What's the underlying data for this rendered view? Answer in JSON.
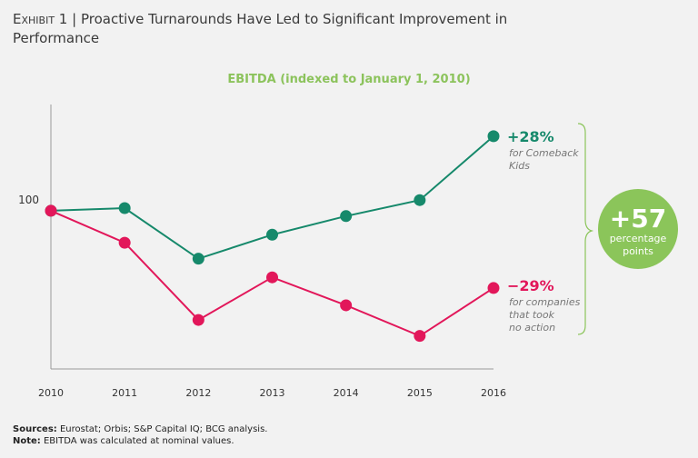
{
  "header": {
    "exhibit_label": "Exhibit 1",
    "separator": " | ",
    "title": "Proactive Turnarounds Have Led to Significant Improvement in Performance"
  },
  "chart_data": {
    "type": "line",
    "title": "EBITDA (indexed to January 1, 2010)",
    "xlabel": "",
    "ylabel": "",
    "categories": [
      "2010",
      "2011",
      "2012",
      "2013",
      "2014",
      "2015",
      "2016"
    ],
    "y_ticks": [
      100
    ],
    "y_tick_labels": [
      "100"
    ],
    "ylim": [
      40.6,
      139.9
    ],
    "grid": false,
    "series": [
      {
        "name": "Comeback Kids",
        "color": "#16896b",
        "values": [
          100,
          101,
          82,
          91,
          98,
          104,
          128
        ]
      },
      {
        "name": "Companies that took no action",
        "color": "#e2175a",
        "values": [
          100,
          88,
          59,
          75,
          64.5,
          53,
          71
        ]
      }
    ],
    "annotations": {
      "green_value": "+28%",
      "green_lines": [
        "for Comeback",
        "Kids"
      ],
      "red_value": "−29%",
      "red_lines": [
        "for companies",
        "that took",
        "no action"
      ],
      "circle_value": "+57",
      "circle_lines": [
        "percentage",
        "points"
      ],
      "circle_color": "#8bc55a"
    }
  },
  "footer": {
    "sources_label": "Sources:",
    "sources_text": " Eurostat; Orbis; S&P Capital IQ; BCG analysis.",
    "note_label": "Note:",
    "note_text": " EBITDA was calculated at nominal values."
  }
}
